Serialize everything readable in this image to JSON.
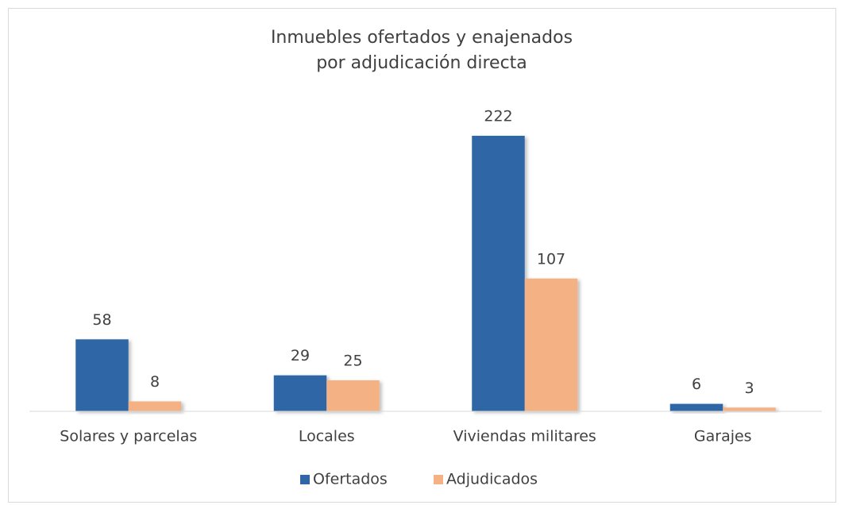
{
  "chart_data": {
    "type": "bar",
    "title": [
      "Inmuebles ofertados y enajenados",
      "por adjudicación directa"
    ],
    "categories": [
      "Solares y parcelas",
      "Locales",
      "Viviendas militares",
      "Garajes"
    ],
    "series": [
      {
        "name": "Ofertados",
        "color": "#2e66a6",
        "values": [
          58,
          29,
          222,
          6
        ]
      },
      {
        "name": "Adjudicados",
        "color": "#f4b183",
        "values": [
          8,
          25,
          107,
          3
        ]
      }
    ],
    "ylim": [
      0,
      250
    ],
    "legend": "bottom"
  }
}
